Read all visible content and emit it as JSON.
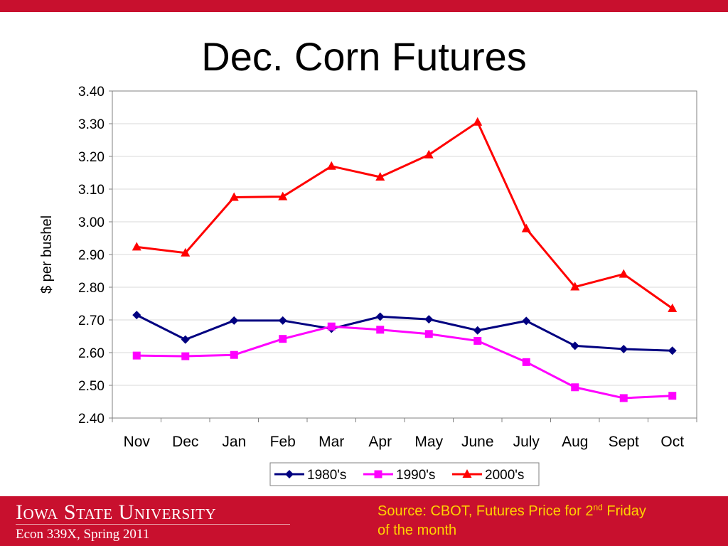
{
  "slide": {
    "title": "Dec. Corn Futures"
  },
  "footer": {
    "university": "Iowa State University",
    "course": "Econ 339X, Spring 2011",
    "source_prefix": "Source: CBOT, Futures Price for 2",
    "source_sup": "nd",
    "source_line1_suffix": " Friday",
    "source_line2": "of the month"
  },
  "colors": {
    "brand_red": "#c8102e",
    "source_text": "#ffd200",
    "series_1980s": "#000080",
    "series_1990s": "#ff00ff",
    "series_2000s": "#ff0000"
  },
  "chart_data": {
    "type": "line",
    "title": "",
    "xlabel": "",
    "ylabel": "$ per bushel",
    "ylim": [
      2.4,
      3.4
    ],
    "yticks": [
      "2.40",
      "2.50",
      "2.60",
      "2.70",
      "2.80",
      "2.90",
      "3.00",
      "3.10",
      "3.20",
      "3.30",
      "3.40"
    ],
    "categories": [
      "Nov",
      "Dec",
      "Jan",
      "Feb",
      "Mar",
      "Apr",
      "May",
      "June",
      "July",
      "Aug",
      "Sept",
      "Oct"
    ],
    "grid": true,
    "legend_position": "bottom",
    "series": [
      {
        "name": "1980's",
        "color": "#000080",
        "marker": "diamond",
        "values": [
          2.715,
          2.64,
          2.698,
          2.698,
          2.673,
          2.71,
          2.702,
          2.668,
          2.697,
          2.621,
          2.611,
          2.606
        ]
      },
      {
        "name": "1990's",
        "color": "#ff00ff",
        "marker": "square",
        "values": [
          2.591,
          2.589,
          2.593,
          2.642,
          2.68,
          2.67,
          2.657,
          2.636,
          2.571,
          2.494,
          2.461,
          2.468
        ]
      },
      {
        "name": "2000's",
        "color": "#ff0000",
        "marker": "triangle",
        "values": [
          2.923,
          2.905,
          3.075,
          3.077,
          3.17,
          3.137,
          3.205,
          3.305,
          2.979,
          2.801,
          2.84,
          2.735
        ]
      }
    ]
  }
}
